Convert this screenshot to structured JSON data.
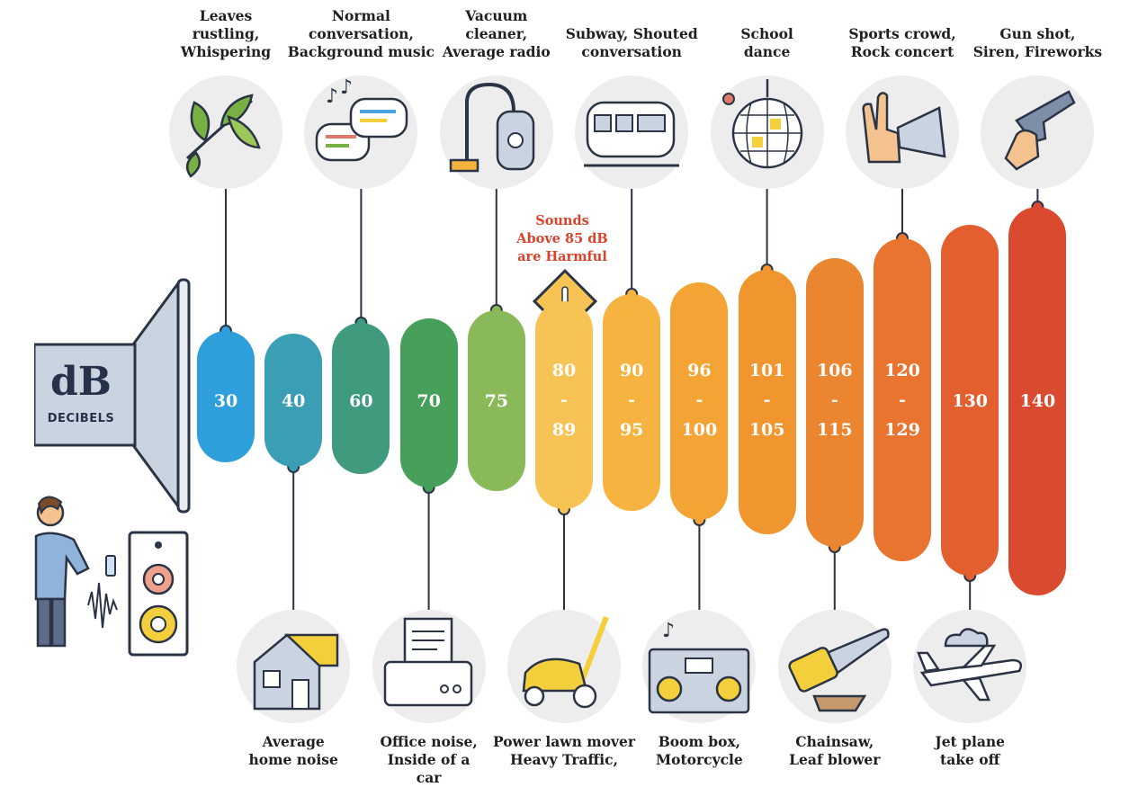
{
  "warning": {
    "lines": [
      "Sounds",
      "Above 85 dB",
      "are Harmful"
    ]
  },
  "speaker": {
    "title": "dB",
    "subtitle": "DECIBELS"
  },
  "levels": [
    {
      "value_lines": [
        "30"
      ],
      "color": "#2f9fdc",
      "label_lines": [
        "Leaves",
        "rustling,",
        "Whispering"
      ],
      "label_pos": "top",
      "icon": "leaves-icon"
    },
    {
      "value_lines": [
        "40"
      ],
      "color": "#3a9fb4",
      "label_lines": [
        "Average",
        "home noise"
      ],
      "label_pos": "bottom",
      "icon": "house-icon"
    },
    {
      "value_lines": [
        "60"
      ],
      "color": "#3f9a7e",
      "label_lines": [
        "Normal",
        "conversation,",
        "Background music"
      ],
      "label_pos": "top",
      "icon": "speech-bubbles-icon"
    },
    {
      "value_lines": [
        "70"
      ],
      "color": "#47a05a",
      "label_lines": [
        "Office noise,",
        "Inside of a",
        "car"
      ],
      "label_pos": "bottom",
      "icon": "printer-icon"
    },
    {
      "value_lines": [
        "75"
      ],
      "color": "#8ab95a",
      "label_lines": [
        "Vacuum",
        "cleaner,",
        "Average radio"
      ],
      "label_pos": "top",
      "icon": "vacuum-cleaner-icon"
    },
    {
      "value_lines": [
        "80",
        "-",
        "89"
      ],
      "color": "#f7c354",
      "label_lines": [
        "Power lawn mover",
        "Heavy Traffic,"
      ],
      "label_pos": "bottom",
      "icon": "lawn-mower-icon"
    },
    {
      "value_lines": [
        "90",
        "-",
        "95"
      ],
      "color": "#f6b33f",
      "label_lines": [
        "Subway, Shouted",
        "conversation"
      ],
      "label_pos": "top",
      "icon": "train-icon"
    },
    {
      "value_lines": [
        "96",
        "-",
        "100"
      ],
      "color": "#f4a435",
      "label_lines": [
        "Boom box,",
        "Motorcycle"
      ],
      "label_pos": "bottom",
      "icon": "boombox-icon"
    },
    {
      "value_lines": [
        "101",
        "-",
        "105"
      ],
      "color": "#f1952f",
      "label_lines": [
        "School",
        "dance"
      ],
      "label_pos": "top",
      "icon": "disco-ball-icon"
    },
    {
      "value_lines": [
        "106",
        "-",
        "115"
      ],
      "color": "#ec8530",
      "label_lines": [
        "Chainsaw,",
        "Leaf blower"
      ],
      "label_pos": "bottom",
      "icon": "chainsaw-icon"
    },
    {
      "value_lines": [
        "120",
        "-",
        "129"
      ],
      "color": "#e8742f",
      "label_lines": [
        "Sports crowd,",
        "Rock concert"
      ],
      "label_pos": "top",
      "icon": "megaphone-icon"
    },
    {
      "value_lines": [
        "130"
      ],
      "color": "#e35f2f",
      "label_lines": [
        "Jet plane",
        "take off"
      ],
      "label_pos": "bottom",
      "icon": "airplane-icon"
    },
    {
      "value_lines": [
        "140"
      ],
      "color": "#da4a2e",
      "label_lines": [
        "Gun shot,",
        "Siren, Fireworks"
      ],
      "label_pos": "top",
      "icon": "gun-icon"
    }
  ]
}
